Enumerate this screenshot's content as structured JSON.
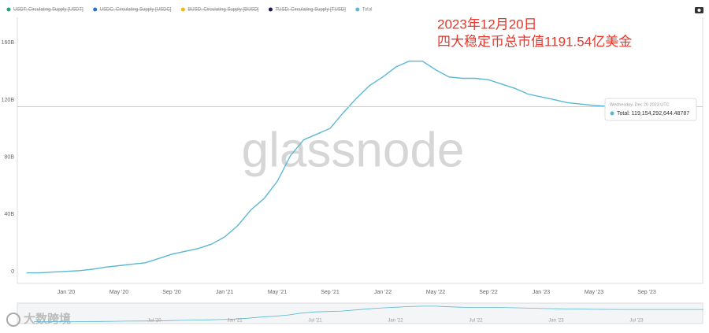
{
  "chart_data": {
    "type": "line",
    "legend": [
      {
        "name": "USDT: Circulating Supply [USDT]",
        "color": "#26a17b",
        "hidden": true
      },
      {
        "name": "USDC: Circulating Supply [USDC]",
        "color": "#2775ca",
        "hidden": true
      },
      {
        "name": "BUSD: Circulating Supply [BUSD]",
        "color": "#f0b90b",
        "hidden": true
      },
      {
        "name": "TUSD: Circulating Supply [TUSD]",
        "color": "#1a1a5e",
        "hidden": true
      },
      {
        "name": "Total",
        "color": "#5bb8d4",
        "hidden": false
      }
    ],
    "annotation": [
      "2023年12月20日",
      "四大稳定币总市值1191.54亿美金"
    ],
    "watermark": "glassnode",
    "x": [
      "2019-10",
      "2019-11",
      "2019-12",
      "2020-01",
      "2020-02",
      "2020-03",
      "2020-04",
      "2020-05",
      "2020-06",
      "2020-07",
      "2020-08",
      "2020-09",
      "2020-10",
      "2020-11",
      "2020-12",
      "2021-01",
      "2021-02",
      "2021-03",
      "2021-04",
      "2021-05",
      "2021-06",
      "2021-07",
      "2021-08",
      "2021-09",
      "2021-10",
      "2021-11",
      "2021-12",
      "2022-01",
      "2022-02",
      "2022-03",
      "2022-04",
      "2022-05",
      "2022-06",
      "2022-07",
      "2022-08",
      "2022-09",
      "2022-10",
      "2022-11",
      "2022-12",
      "2023-01",
      "2023-02",
      "2023-03",
      "2023-04",
      "2023-05",
      "2023-06",
      "2023-07",
      "2023-08",
      "2023-09",
      "2023-10",
      "2023-11",
      "2023-12"
    ],
    "series": [
      {
        "name": "Total",
        "color": "#5bb8d4",
        "values": [
          3000000000.0,
          3000000000.0,
          3500000000.0,
          4000000000.0,
          4500000000.0,
          5500000000.0,
          7000000000.0,
          8000000000.0,
          9000000000.0,
          10000000000.0,
          13000000000.0,
          16000000000.0,
          18000000000.0,
          20000000000.0,
          23000000000.0,
          28000000000.0,
          36000000000.0,
          47000000000.0,
          55000000000.0,
          67000000000.0,
          85000000000.0,
          96000000000.0,
          100000000000.0,
          104000000000.0,
          115000000000.0,
          125000000000.0,
          134000000000.0,
          140000000000.0,
          147000000000.0,
          151000000000.0,
          151000000000.0,
          145000000000.0,
          140000000000.0,
          139000000000.0,
          139000000000.0,
          138000000000.0,
          135000000000.0,
          132000000000.0,
          128000000000.0,
          126000000000.0,
          124000000000.0,
          122000000000.0,
          121000000000.0,
          120000000000.0,
          119500000000.0,
          119300000000.0,
          119200000000.0,
          119200000000.0,
          119100000000.0,
          119100000000.0,
          119154292644.48787
        ]
      }
    ],
    "xlim": [
      "2019-09",
      "2024-01"
    ],
    "xticks": [
      {
        "value": "2020-01",
        "label": "Jan '20"
      },
      {
        "value": "2020-05",
        "label": "May '20"
      },
      {
        "value": "2020-09",
        "label": "Sep '20"
      },
      {
        "value": "2021-01",
        "label": "Jan '21"
      },
      {
        "value": "2021-05",
        "label": "May '21"
      },
      {
        "value": "2021-09",
        "label": "Sep '21"
      },
      {
        "value": "2022-01",
        "label": "Jan '22"
      },
      {
        "value": "2022-05",
        "label": "May '22"
      },
      {
        "value": "2022-09",
        "label": "Sep '22"
      },
      {
        "value": "2023-01",
        "label": "Jan '23"
      },
      {
        "value": "2023-05",
        "label": "May '23"
      },
      {
        "value": "2023-09",
        "label": "Sep '23"
      }
    ],
    "ylim": [
      0,
      180000000000
    ],
    "yticks": [
      {
        "value": 0,
        "label": "0"
      },
      {
        "value": 40000000000,
        "label": "40B"
      },
      {
        "value": 80000000000,
        "label": "80B"
      },
      {
        "value": 120000000000,
        "label": "120B"
      },
      {
        "value": 160000000000,
        "label": "160B"
      }
    ],
    "grid": false,
    "tooltip": {
      "date": "Wednesday, Dec 20 2023 UTC",
      "text": "Total: 119,154,292,644.48787"
    },
    "navigator": {
      "ticks": [
        {
          "value": "2020-07",
          "label": "Jul '20"
        },
        {
          "value": "2021-01",
          "label": "Jan '21"
        },
        {
          "value": "2021-07",
          "label": "Jul '21"
        },
        {
          "value": "2022-01",
          "label": "Jan '22"
        },
        {
          "value": "2022-07",
          "label": "Jul '22"
        },
        {
          "value": "2023-01",
          "label": "Jan '23"
        },
        {
          "value": "2023-07",
          "label": "Jul '23"
        }
      ]
    },
    "logo": "大数跨境"
  }
}
